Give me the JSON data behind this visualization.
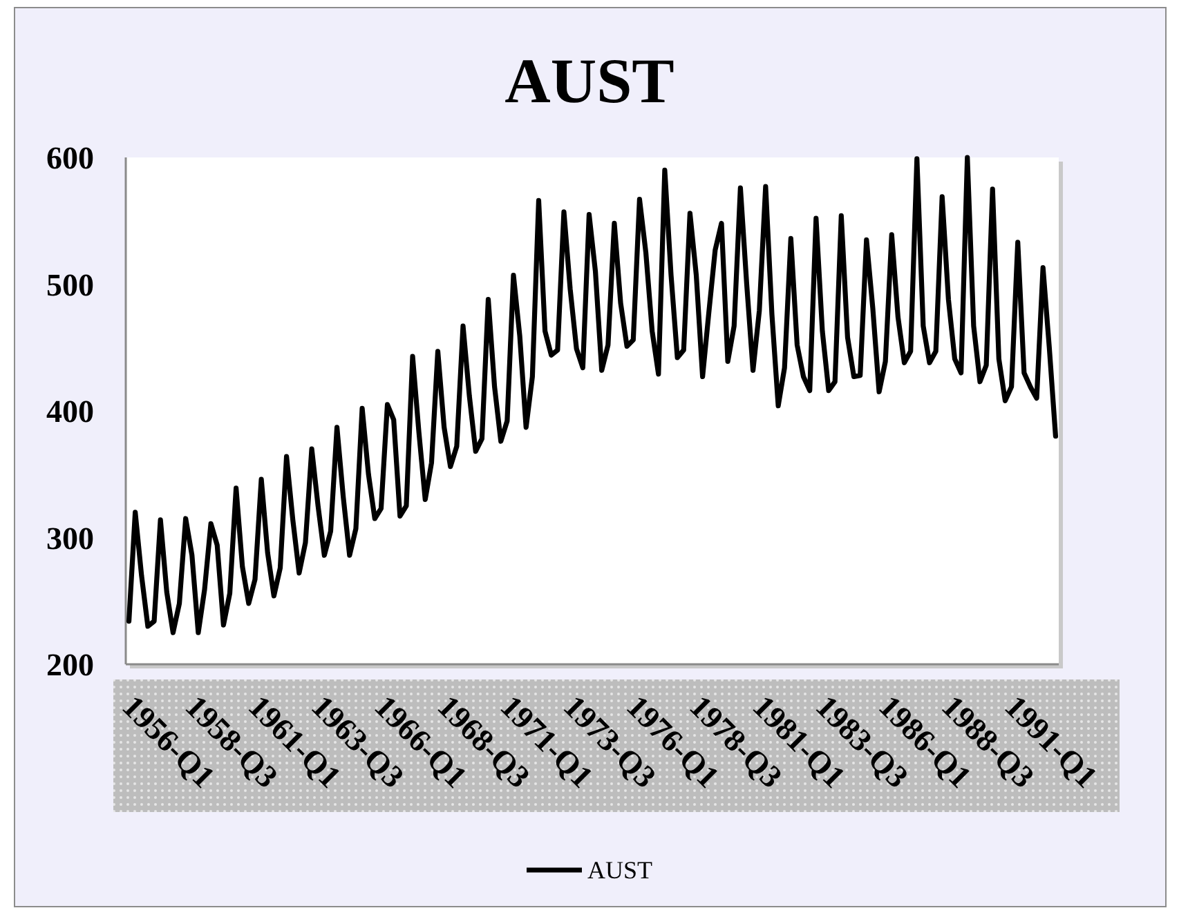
{
  "chart_data": {
    "type": "line",
    "title": "AUST",
    "categories": [
      "1956-Q1",
      null,
      null,
      null,
      null,
      null,
      null,
      null,
      null,
      null,
      "1958-Q3",
      null,
      null,
      null,
      null,
      null,
      null,
      null,
      null,
      null,
      "1961-Q1",
      null,
      null,
      null,
      null,
      null,
      null,
      null,
      null,
      null,
      "1963-Q3",
      null,
      null,
      null,
      null,
      null,
      null,
      null,
      null,
      null,
      "1966-Q1",
      null,
      null,
      null,
      null,
      null,
      null,
      null,
      null,
      null,
      "1968-Q3",
      null,
      null,
      null,
      null,
      null,
      null,
      null,
      null,
      null,
      "1971-Q1",
      null,
      null,
      null,
      null,
      null,
      null,
      null,
      null,
      null,
      "1973-Q3",
      null,
      null,
      null,
      null,
      null,
      null,
      null,
      null,
      null,
      "1976-Q1",
      null,
      null,
      null,
      null,
      null,
      null,
      null,
      null,
      null,
      "1978-Q3",
      null,
      null,
      null,
      null,
      null,
      null,
      null,
      null,
      null,
      "1981-Q1",
      null,
      null,
      null,
      null,
      null,
      null,
      null,
      null,
      null,
      "1983-Q3",
      null,
      null,
      null,
      null,
      null,
      null,
      null,
      null,
      null,
      "1986-Q1",
      null,
      null,
      null,
      null,
      null,
      null,
      null,
      null,
      null,
      "1988-Q3",
      null,
      null,
      null,
      null,
      null,
      null,
      null,
      null,
      null,
      "1991-Q1",
      null,
      null,
      null,
      null,
      null,
      null,
      null
    ],
    "series": [
      {
        "name": "AUST",
        "color": "#000000",
        "values": [
          234,
          320,
          270,
          230,
          234,
          314,
          257,
          225,
          248,
          315,
          286,
          225,
          259,
          311,
          294,
          231,
          256,
          339,
          277,
          248,
          267,
          346,
          288,
          254,
          276,
          364,
          314,
          272,
          296,
          370,
          325,
          286,
          305,
          387,
          332,
          286,
          307,
          402,
          350,
          315,
          323,
          405,
          393,
          317,
          325,
          443,
          383,
          330,
          359,
          447,
          387,
          356,
          372,
          467,
          412,
          368,
          378,
          488,
          419,
          376,
          392,
          507,
          459,
          387,
          427,
          566,
          463,
          444,
          448,
          557,
          496,
          449,
          434,
          555,
          510,
          432,
          452,
          548,
          485,
          451,
          456,
          567,
          525,
          463,
          429,
          590,
          507,
          442,
          448,
          556,
          507,
          427,
          478,
          527,
          548,
          439,
          467,
          576,
          500,
          432,
          479,
          577,
          476,
          404,
          434,
          536,
          452,
          427,
          416,
          552,
          463,
          416,
          423,
          554,
          458,
          427,
          428,
          535,
          481,
          415,
          439,
          539,
          474,
          438,
          447,
          599,
          467,
          438,
          447,
          569,
          488,
          441,
          430,
          600,
          467,
          423,
          436,
          575,
          441,
          408,
          419,
          533,
          430,
          419,
          410,
          513,
          450,
          380
        ]
      }
    ],
    "ylim": [
      200,
      600
    ],
    "yticks": [
      200,
      300,
      400,
      500,
      600
    ],
    "legend": "bottom"
  }
}
